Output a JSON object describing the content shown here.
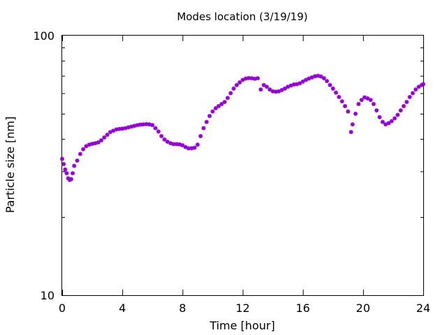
{
  "chart_data": {
    "type": "scatter",
    "title": "Modes location (3/19/19)",
    "xlabel": "Time [hour]",
    "ylabel": "Particle size [nm]",
    "xlim": [
      0,
      24
    ],
    "ylim": [
      10,
      100
    ],
    "yscale": "log",
    "x_ticks": [
      0,
      4,
      8,
      12,
      16,
      20,
      24
    ],
    "x_tick_labels": [
      "0",
      "4",
      "8",
      "12",
      "16",
      "20",
      "24"
    ],
    "y_tick_labels": [
      {
        "value": 10,
        "label": "10"
      },
      {
        "value": 100,
        "label": "100"
      }
    ],
    "grid": false,
    "legend": "none",
    "marker": "star",
    "color": "#9400d3",
    "series": [
      {
        "x": [
          0.0,
          0.1,
          0.2,
          0.3,
          0.4,
          0.5,
          0.6,
          0.7,
          0.8,
          1.0,
          1.2,
          1.4,
          1.6,
          1.8,
          2.0,
          2.2,
          2.4,
          2.6,
          2.8,
          3.0,
          3.2,
          3.4,
          3.6,
          3.8,
          4.0,
          4.2,
          4.4,
          4.6,
          4.8,
          5.0,
          5.2,
          5.4,
          5.6,
          5.8,
          6.0,
          6.2,
          6.4,
          6.6,
          6.8,
          7.0,
          7.2,
          7.4,
          7.6,
          7.8,
          8.0,
          8.2,
          8.4,
          8.6,
          8.8,
          9.0,
          9.2,
          9.4,
          9.6,
          9.8,
          10.0,
          10.2,
          10.4,
          10.6,
          10.8,
          11.0,
          11.2,
          11.4,
          11.6,
          11.8,
          12.0,
          12.2,
          12.4,
          12.6,
          12.8,
          13.0,
          13.2,
          13.4,
          13.6,
          13.8,
          14.0,
          14.2,
          14.4,
          14.6,
          14.8,
          15.0,
          15.2,
          15.4,
          15.6,
          15.8,
          16.0,
          16.2,
          16.4,
          16.6,
          16.8,
          17.0,
          17.2,
          17.4,
          17.6,
          17.8,
          18.0,
          18.2,
          18.4,
          18.6,
          18.8,
          19.0,
          19.2,
          19.3,
          19.5,
          19.7,
          19.9,
          20.1,
          20.3,
          20.5,
          20.7,
          20.9,
          21.1,
          21.3,
          21.5,
          21.7,
          21.9,
          22.1,
          22.3,
          22.5,
          22.7,
          22.9,
          23.1,
          23.3,
          23.5,
          23.7,
          23.9,
          24.0
        ],
        "y": [
          33.5,
          32.0,
          30.5,
          29.5,
          28.2,
          27.8,
          28.0,
          29.5,
          31.5,
          33.0,
          35.0,
          36.5,
          37.5,
          38.0,
          38.3,
          38.5,
          38.8,
          39.5,
          40.5,
          41.5,
          42.5,
          43.0,
          43.5,
          43.7,
          43.8,
          44.0,
          44.3,
          44.6,
          44.9,
          45.2,
          45.4,
          45.5,
          45.6,
          45.5,
          45.2,
          44.0,
          42.7,
          41.0,
          39.8,
          39.0,
          38.5,
          38.2,
          38.2,
          38.1,
          37.8,
          37.2,
          36.8,
          36.8,
          37.0,
          38.0,
          41.0,
          44.0,
          46.5,
          49.0,
          51.0,
          52.5,
          53.5,
          54.5,
          55.5,
          57.5,
          60.0,
          62.5,
          64.5,
          66.0,
          67.5,
          68.3,
          68.6,
          68.5,
          68.2,
          68.5,
          62.0,
          64.5,
          63.5,
          62.0,
          61.0,
          60.8,
          61.0,
          61.7,
          62.5,
          63.5,
          64.2,
          64.8,
          65.0,
          65.5,
          66.5,
          67.5,
          68.3,
          69.0,
          69.7,
          70.0,
          69.6,
          68.5,
          66.8,
          64.5,
          62.5,
          60.3,
          58.0,
          55.8,
          53.5,
          51.0,
          42.5,
          45.5,
          50.0,
          54.5,
          56.5,
          57.8,
          57.3,
          56.5,
          54.5,
          51.5,
          48.5,
          46.5,
          45.5,
          46.0,
          46.8,
          48.0,
          49.5,
          51.5,
          53.5,
          55.5,
          58.0,
          60.0,
          62.0,
          63.5,
          64.5,
          65.0
        ]
      }
    ]
  }
}
